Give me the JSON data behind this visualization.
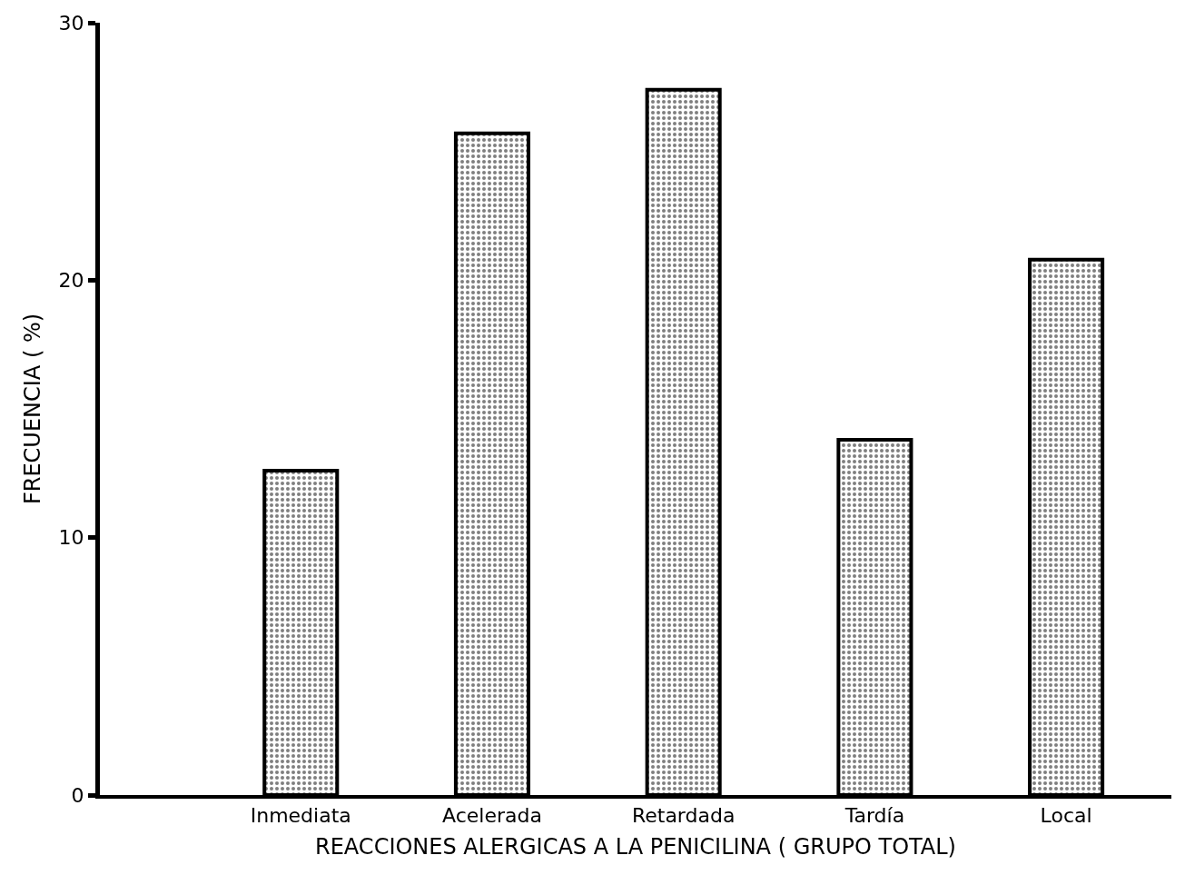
{
  "chart_data": {
    "type": "bar",
    "xlabel": "REACCIONES ALERGICAS A LA PENICILINA ( GRUPO TOTAL)",
    "ylabel": "FRECUENCIA ( %)",
    "categories": [
      "Inmediata",
      "Acelerada",
      "Retardada",
      "Tardía",
      "Local"
    ],
    "values": [
      12.6,
      25.7,
      27.4,
      13.8,
      20.8
    ],
    "color": "#000000",
    "ylim": [
      0,
      30
    ],
    "yticks": [
      0,
      10,
      20,
      30
    ]
  }
}
